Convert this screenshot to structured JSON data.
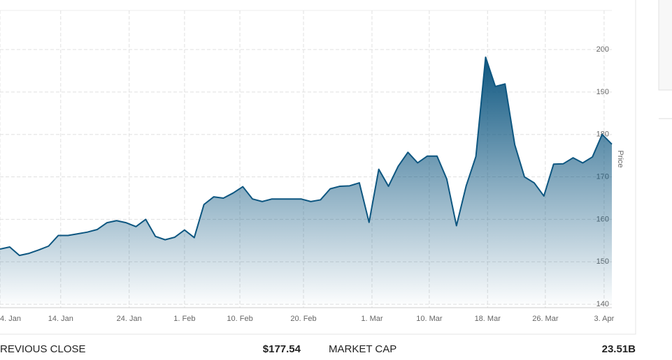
{
  "chart_data": {
    "type": "area",
    "y_axis_label": "Price",
    "color": "#0d5680",
    "x": [
      0,
      1,
      2,
      3,
      4,
      5,
      6,
      7,
      8,
      9,
      10,
      11,
      12,
      13,
      14,
      15,
      16,
      17,
      18,
      19,
      20,
      21,
      22,
      23,
      24,
      25,
      26,
      27,
      28,
      29,
      30,
      31,
      32,
      33,
      34,
      35,
      36,
      37,
      38,
      39,
      40,
      41,
      42,
      43,
      44,
      45,
      46,
      47,
      48,
      49,
      50,
      51,
      52,
      53,
      54,
      55,
      56,
      57,
      58,
      59,
      60,
      61,
      62,
      63
    ],
    "values": [
      153,
      153.5,
      151.5,
      152,
      152.8,
      153.7,
      156.2,
      156.2,
      156.6,
      157,
      157.6,
      159.2,
      159.7,
      159.2,
      158.3,
      160,
      156,
      155.2,
      155.8,
      157.5,
      155.7,
      163.5,
      165.3,
      165,
      166.2,
      167.7,
      164.8,
      164.2,
      164.8,
      164.8,
      164.8,
      164.8,
      164.2,
      164.6,
      167.2,
      167.8,
      167.9,
      168.6,
      159.3,
      171.8,
      167.8,
      172.5,
      175.8,
      173.3,
      174.9,
      174.9,
      169.5,
      158.5,
      167.9,
      174.8,
      198.2,
      191.3,
      191.9,
      177.6,
      170,
      168.6,
      165.5,
      173,
      173.1,
      174.5,
      173.3,
      174.7,
      180,
      177.7
    ],
    "xlim": [
      0,
      63
    ],
    "xticks": [
      {
        "value": 0,
        "label": "4. Jan"
      },
      {
        "value": 6.25,
        "label": "14. Jan"
      },
      {
        "value": 13.3,
        "label": "24. Jan"
      },
      {
        "value": 19,
        "label": "1. Feb"
      },
      {
        "value": 24.7,
        "label": "10. Feb"
      },
      {
        "value": 31.25,
        "label": "20. Feb"
      },
      {
        "value": 38.3,
        "label": "1. Mar"
      },
      {
        "value": 44.2,
        "label": "10. Mar"
      },
      {
        "value": 50.2,
        "label": "18. Mar"
      },
      {
        "value": 56.15,
        "label": "26. Mar"
      },
      {
        "value": 62.2,
        "label": "3. Apr"
      }
    ],
    "ylim": [
      139.2,
      209.2
    ],
    "yticks": [
      140,
      150,
      160,
      170,
      180,
      190,
      200
    ],
    "grid": true
  },
  "stats": [
    {
      "label": "REVIOUS CLOSE",
      "value": "$177.54"
    },
    {
      "label": "MARKET CAP",
      "value": "23.51B"
    }
  ]
}
